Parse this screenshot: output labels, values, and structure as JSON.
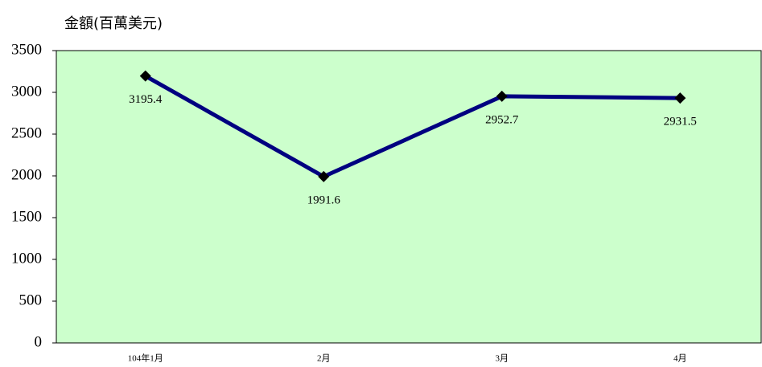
{
  "chart_data": {
    "type": "line",
    "y_label": "金額(百萬美元)",
    "categories": [
      "104年1月",
      "2月",
      "3月",
      "4月"
    ],
    "series": [
      {
        "name": null,
        "color": "#000080",
        "marker_color": "#000000",
        "values": [
          3195.4,
          1991.6,
          2952.7,
          2931.5
        ]
      }
    ],
    "ylim": [
      0,
      3500
    ],
    "yticks": [
      0,
      500,
      1000,
      1500,
      2000,
      2500,
      3000,
      3500
    ],
    "plot_background": "#ccffcc",
    "grid": false
  }
}
